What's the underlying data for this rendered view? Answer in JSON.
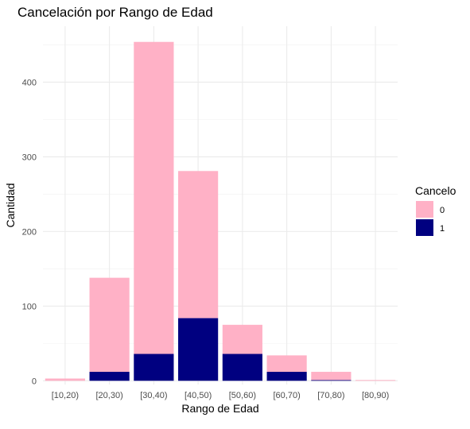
{
  "chart_data": {
    "type": "bar",
    "stacked": true,
    "title": "Cancelación por Rango de Edad",
    "xlabel": "Rango de Edad",
    "ylabel": "Cantidad",
    "categories": [
      "[10,20)",
      "[20,30)",
      "[30,40)",
      "[40,50)",
      "[50,60)",
      "[60,70)",
      "[70,80)",
      "[80,90)"
    ],
    "series": [
      {
        "name": "0",
        "color": "#FFB1C6",
        "values": [
          3,
          126,
          418,
          197,
          39,
          22,
          11,
          1
        ]
      },
      {
        "name": "1",
        "color": "#000080",
        "values": [
          0,
          12,
          36,
          84,
          36,
          12,
          1,
          0
        ]
      }
    ],
    "yticks": [
      0,
      100,
      200,
      300,
      400
    ],
    "ylim": [
      -5,
      475
    ],
    "grid": true,
    "legend": {
      "title": "Cancelo",
      "position": "right",
      "entries": [
        "0",
        "1"
      ]
    }
  }
}
